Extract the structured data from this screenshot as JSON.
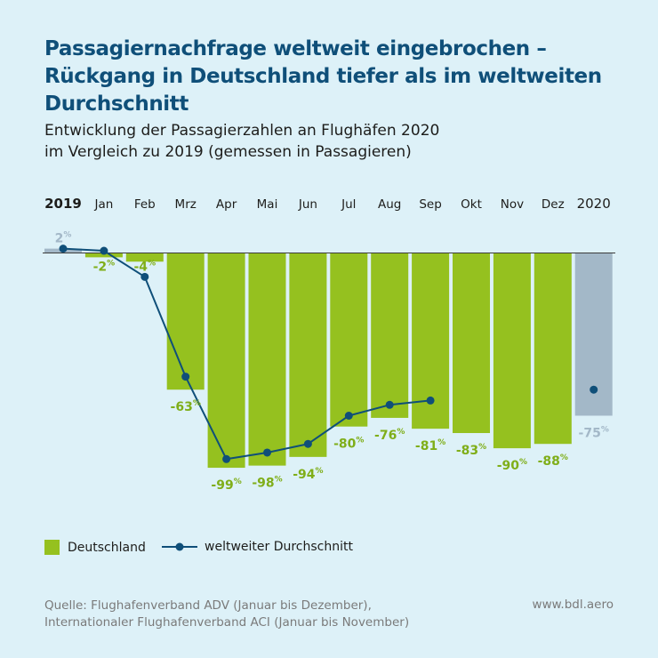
{
  "title": "Passagiernachfrage weltweit eingebrochen – Rückgang in Deutschland tiefer als im weltweiten Durchschnitt",
  "subtitle_line1": "Entwicklung der Passagierzahlen an Flughäfen 2020",
  "subtitle_line2": "im Vergleich zu 2019 (gemessen in Passagieren)",
  "legend": {
    "bars": "Deutschland",
    "line": "weltweiter Durchschnitt"
  },
  "footer": {
    "line1": "Quelle: Flughafenverband ADV (Januar bis Dezember),",
    "line2": "Internationaler Flughafenverband ACI (Januar bis November)",
    "url": "www.bdl.aero"
  },
  "colors": {
    "bar": "#95c11f",
    "year_bar": "#a3b8c8",
    "line": "#0f4f79",
    "title": "#0f4f79"
  },
  "chart_data": {
    "type": "bar",
    "categories": [
      "2019",
      "Jan",
      "Feb",
      "Mrz",
      "Apr",
      "Mai",
      "Jun",
      "Jul",
      "Aug",
      "Sep",
      "Okt",
      "Nov",
      "Dez",
      "2020"
    ],
    "series": [
      {
        "name": "Deutschland",
        "values": [
          null,
          -2,
          -4,
          -63,
          -99,
          -98,
          -94,
          -80,
          -76,
          -81,
          -83,
          -90,
          -88,
          null
        ]
      },
      {
        "name": "weltweiter Durchschnitt",
        "type": "line",
        "values": [
          2,
          1,
          -11,
          -57,
          -95,
          -92,
          -88,
          -75,
          -70,
          -68,
          null,
          null,
          null,
          -63
        ]
      }
    ],
    "year_bars": {
      "2019": 2,
      "2020": -75
    },
    "data_labels": [
      "2%",
      "-2%",
      "-4%",
      "-63%",
      "-99%",
      "-98%",
      "-94%",
      "-80%",
      "-76%",
      "-81%",
      "-83%",
      "-90%",
      "-88%",
      "-75%"
    ],
    "ylim": [
      -100,
      5
    ],
    "grid": false,
    "legend_position": "bottom-left"
  }
}
